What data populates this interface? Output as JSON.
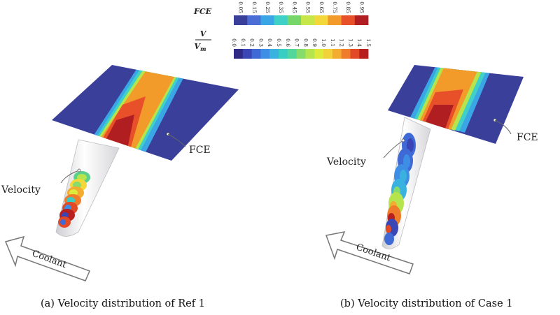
{
  "colorbars": {
    "fce": {
      "title": "FCE",
      "ticks": [
        "0.05",
        "0.15",
        "0.25",
        "0.35",
        "0.45",
        "0.55",
        "0.65",
        "0.75",
        "0.85",
        "0.95"
      ],
      "colors": [
        "#3a3f9a",
        "#4a6ed6",
        "#3aa6e6",
        "#3fd0c8",
        "#76d66a",
        "#c6e64a",
        "#f2d83a",
        "#f29a2a",
        "#e8502a",
        "#b01e22"
      ]
    },
    "velocity": {
      "title_num": "V",
      "title_den": "V",
      "title_den_sub": "m",
      "ticks": [
        "0.0",
        "0.1",
        "0.2",
        "0.3",
        "0.4",
        "0.5",
        "0.6",
        "0.7",
        "0.8",
        "0.9",
        "1.0",
        "1.1",
        "1.2",
        "1.3",
        "1.4",
        "1.5"
      ],
      "colors": [
        "#2e2a86",
        "#3a45b6",
        "#3f6ad6",
        "#3f8ee6",
        "#3ab2e0",
        "#3acdc4",
        "#52d69a",
        "#86dc6a",
        "#b6e44c",
        "#dcea3c",
        "#f2d23a",
        "#f4ac30",
        "#ef7c2a",
        "#e24a26",
        "#b8201f"
      ]
    }
  },
  "panel_a": {
    "caption": "(a)  Velocity distribution of Ref 1",
    "label_velocity": "Velocity",
    "label_fce": "FCE",
    "label_coolant": "Coolant"
  },
  "panel_b": {
    "caption": "(b)  Velocity distribution of Case 1",
    "label_velocity": "Velocity",
    "label_fce": "FCE",
    "label_coolant": "Coolant"
  }
}
